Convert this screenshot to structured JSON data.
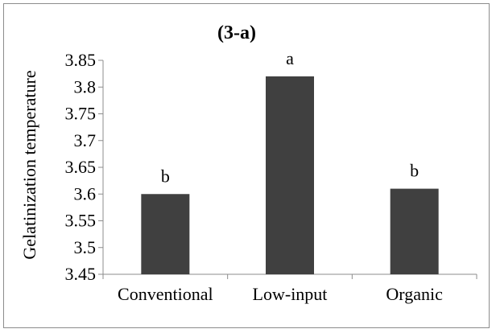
{
  "chart_data": {
    "type": "bar",
    "title": "(3-a)",
    "xlabel": "",
    "ylabel": "Gelatinization temperature",
    "categories": [
      "Conventional",
      "Low-input",
      "Organic"
    ],
    "values": [
      3.6,
      3.82,
      3.61
    ],
    "data_labels": [
      "b",
      "a",
      "b"
    ],
    "ylim": [
      3.45,
      3.85
    ],
    "yticks": [
      3.45,
      3.5,
      3.55,
      3.6,
      3.65,
      3.7,
      3.75,
      3.8,
      3.85
    ],
    "ytick_labels": [
      "3.45",
      "3.5",
      "3.55",
      "3.6",
      "3.65",
      "3.7",
      "3.75",
      "3.8",
      "3.85"
    ],
    "grid": false,
    "legend": "none",
    "bar_color": "#404040"
  }
}
